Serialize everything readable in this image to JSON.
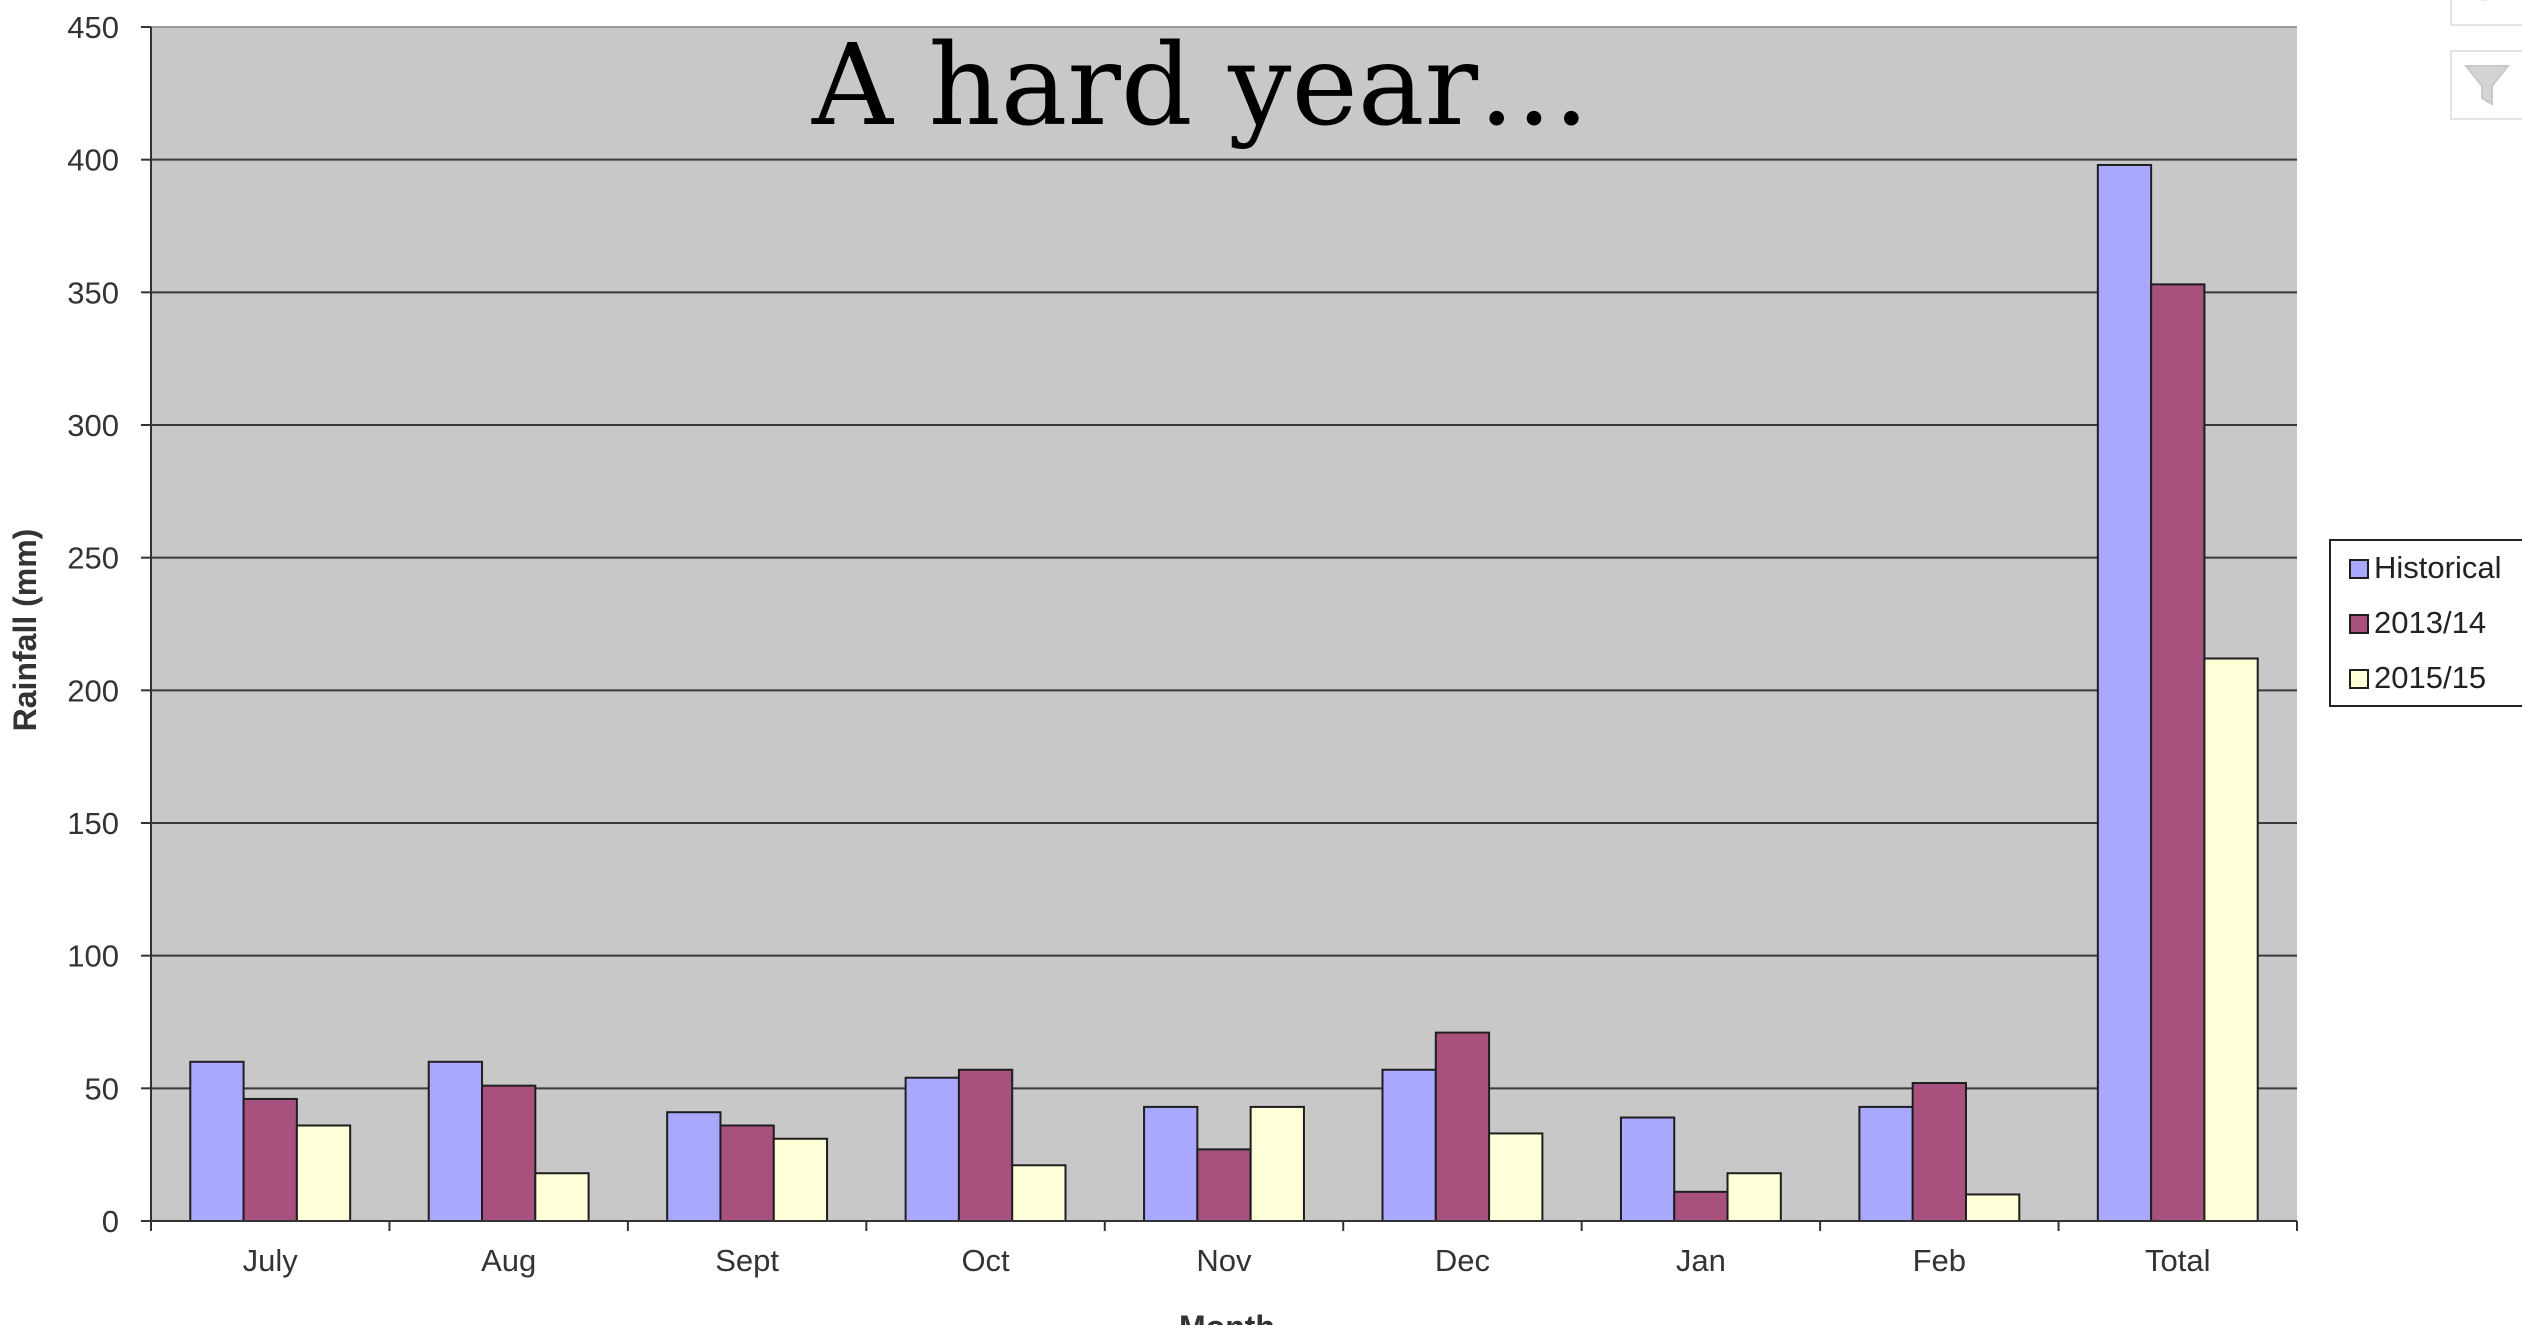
{
  "chart_data": {
    "type": "bar",
    "title": "A hard year…",
    "xlabel": "Month",
    "ylabel": "Rainfall (mm)",
    "ylim": [
      0,
      450
    ],
    "yticks": [
      0,
      50,
      100,
      150,
      200,
      250,
      300,
      350,
      400,
      450
    ],
    "categories": [
      "July",
      "Aug",
      "Sept",
      "Oct",
      "Nov",
      "Dec",
      "Jan",
      "Feb",
      "Total"
    ],
    "series": [
      {
        "name": "Historical",
        "color": "#a8a8ff",
        "values": [
          60,
          60,
          41,
          54,
          43,
          57,
          39,
          43,
          398
        ]
      },
      {
        "name": "2013/14",
        "color": "#a8517e",
        "values": [
          46,
          51,
          36,
          57,
          27,
          71,
          11,
          52,
          353
        ]
      },
      {
        "name": "2015/15",
        "color": "#ffffd8",
        "values": [
          36,
          18,
          31,
          21,
          43,
          33,
          18,
          10,
          212
        ]
      }
    ],
    "grid": true,
    "plot_background": "#c8c8c8",
    "legend_position": "right"
  },
  "toolbar": {
    "icons": [
      "brush-icon",
      "filter-icon"
    ]
  }
}
